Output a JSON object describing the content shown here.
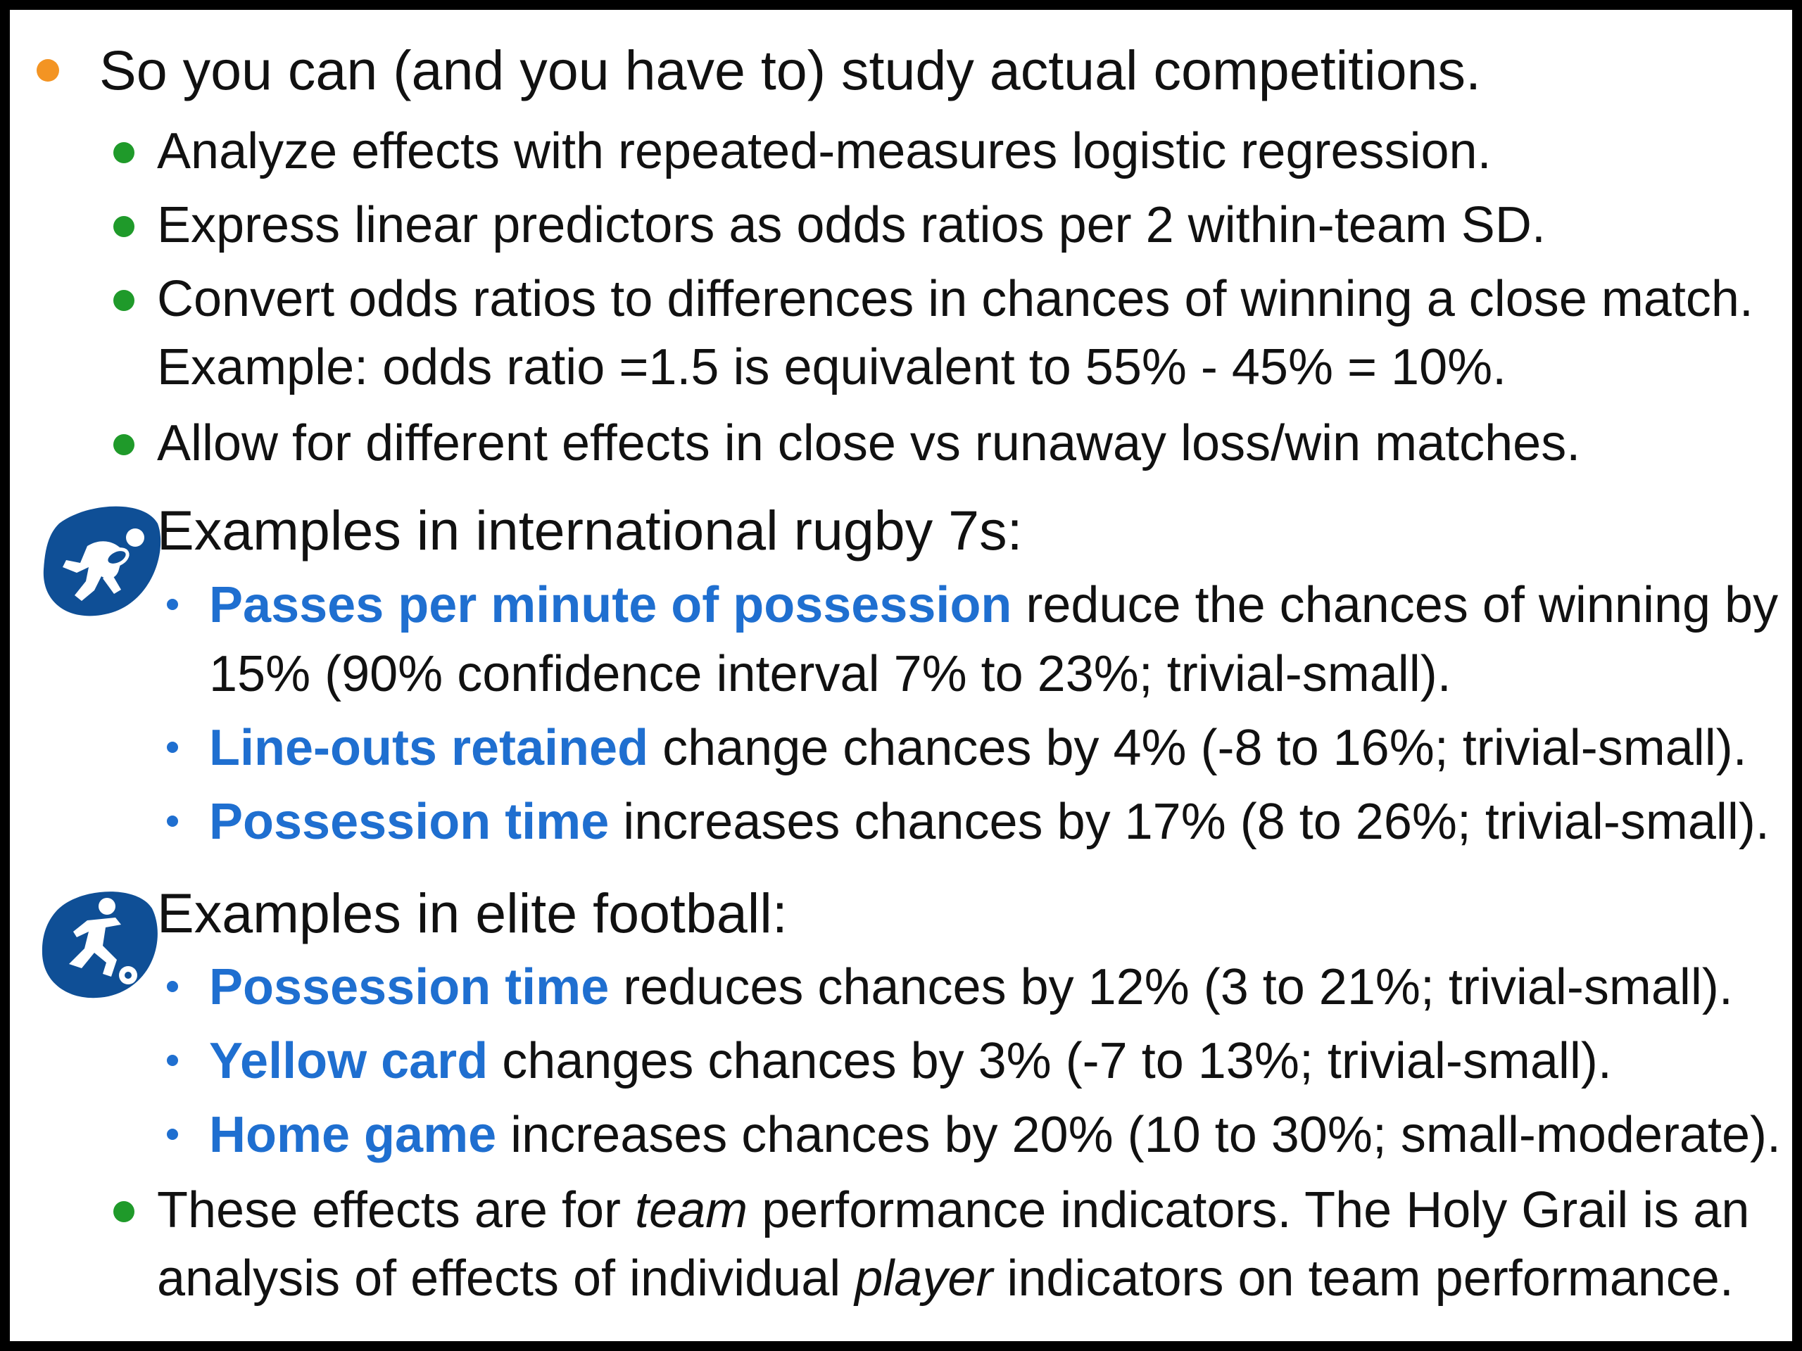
{
  "bullets": {
    "main": "So you can (and you have to) study actual competitions.",
    "sub1": "Analyze effects with repeated-measures logistic regression.",
    "sub2": "Express linear predictors as odds ratios per 2 within-team SD.",
    "sub3_line1": "Convert odds ratios to differences in chances of winning a close match.",
    "sub3_line2": "Example: odds ratio =1.5 is equivalent to 55% - 45% = 10%.",
    "sub4": "Allow for different effects in close vs runaway loss/win matches."
  },
  "rugby": {
    "icon": "rugby-sevens-icon",
    "heading": "Examples in international rugby 7s:",
    "item1": {
      "highlight": "Passes per minute of possession",
      "rest": " reduce the chances of winning by",
      "line2": "15% (90% confidence interval 7% to 23%; trivial-small)."
    },
    "item2": {
      "highlight": "Line-outs retained",
      "rest": " change chances by 4% (-8 to 16%; trivial-small)."
    },
    "item3": {
      "highlight": "Possession time",
      "rest": " increases chances by 17% (8 to 26%; trivial-small)."
    }
  },
  "football": {
    "icon": "football-icon",
    "heading": "Examples in elite football:",
    "item1": {
      "highlight": "Possession time",
      "rest": " reduces chances by 12% (3 to 21%; trivial-small)."
    },
    "item2": {
      "highlight": "Yellow card",
      "rest": " changes chances by 3% (-7 to 13%; trivial-small)."
    },
    "item3": {
      "highlight": "Home game",
      "rest": " increases chances by 20% (10 to 30%; small-moderate)."
    }
  },
  "closing": {
    "l1_a": "These effects are for ",
    "l1_em": "team",
    "l1_b": " performance indicators. The Holy Grail is an",
    "l2_a": "analysis of effects of individual ",
    "l2_em": "player",
    "l2_b": " indicators on team performance."
  },
  "colors": {
    "orange_bullet": "#f39423",
    "green_bullet": "#1f9a2a",
    "highlight_blue": "#1f6fd0",
    "icon_blue": "#0f4f96"
  }
}
